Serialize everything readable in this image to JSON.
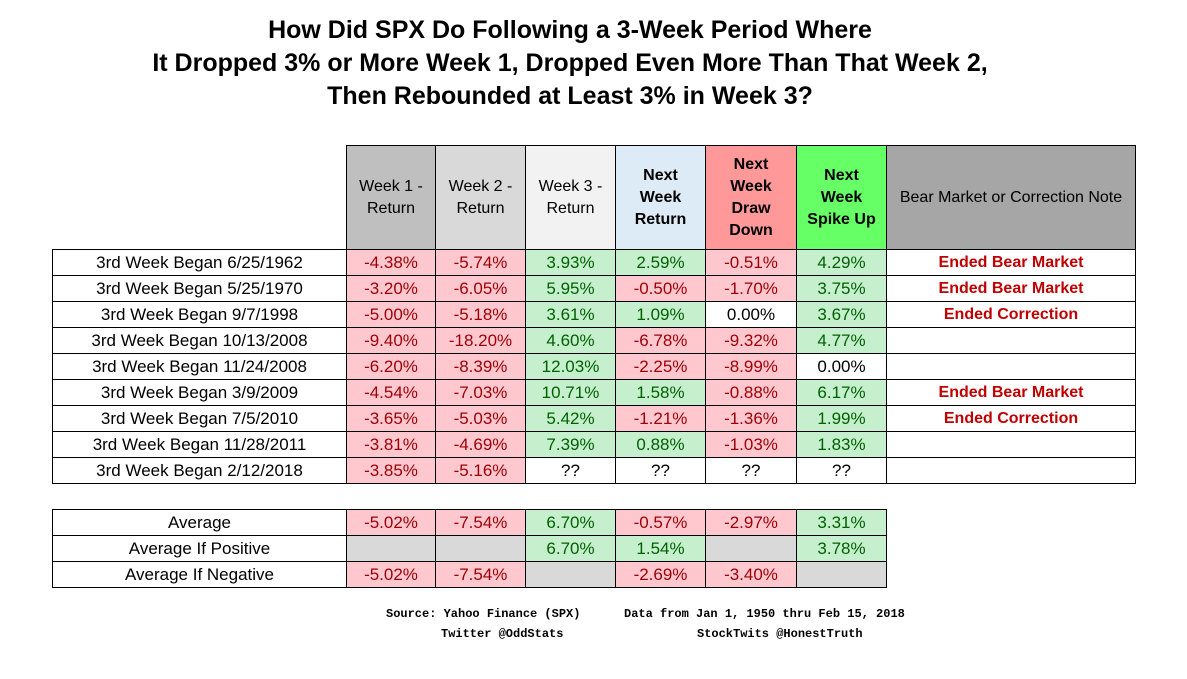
{
  "title": [
    "How Did SPX Do Following a 3-Week Period Where",
    "It Dropped 3% or More Week 1, Dropped Even More Than That Week 2,",
    "Then Rebounded at Least 3% in Week 3?"
  ],
  "header_colors": [
    "#bfbfbf",
    "#d9d9d9",
    "#f2f2f2",
    "#ddebf7",
    "#ff9999",
    "#66ff66",
    "#a6a6a6"
  ],
  "headers": [
    {
      "lines": [
        "Week 1 -",
        "Return"
      ],
      "bold": false
    },
    {
      "lines": [
        "Week 2 -",
        "Return"
      ],
      "bold": false
    },
    {
      "lines": [
        "Week 3 -",
        "Return"
      ],
      "bold": false
    },
    {
      "lines": [
        "Next",
        "Week",
        "Return"
      ],
      "bold": true
    },
    {
      "lines": [
        "Next",
        "Week",
        "Draw",
        "Down"
      ],
      "bold": true
    },
    {
      "lines": [
        "Next",
        "Week",
        "Spike Up"
      ],
      "bold": true
    },
    {
      "lines": [
        "Bear Market or Correction Note"
      ],
      "bold": false
    }
  ],
  "rows": [
    {
      "label": "3rd Week Began 6/25/1962",
      "values": [
        "-4.38%",
        "-5.74%",
        "3.93%",
        "2.59%",
        "-0.51%",
        "4.29%"
      ],
      "note": "Ended Bear Market"
    },
    {
      "label": "3rd Week Began 5/25/1970",
      "values": [
        "-3.20%",
        "-6.05%",
        "5.95%",
        "-0.50%",
        "-1.70%",
        "3.75%"
      ],
      "note": "Ended Bear Market"
    },
    {
      "label": "3rd Week Began 9/7/1998",
      "values": [
        "-5.00%",
        "-5.18%",
        "3.61%",
        "1.09%",
        "0.00%",
        "3.67%"
      ],
      "note": "Ended Correction"
    },
    {
      "label": "3rd Week Began 10/13/2008",
      "values": [
        "-9.40%",
        "-18.20%",
        "4.60%",
        "-6.78%",
        "-9.32%",
        "4.77%"
      ],
      "note": ""
    },
    {
      "label": "3rd Week Began 11/24/2008",
      "values": [
        "-6.20%",
        "-8.39%",
        "12.03%",
        "-2.25%",
        "-8.99%",
        "0.00%"
      ],
      "note": ""
    },
    {
      "label": "3rd Week Began 3/9/2009",
      "values": [
        "-4.54%",
        "-7.03%",
        "10.71%",
        "1.58%",
        "-0.88%",
        "6.17%"
      ],
      "note": "Ended Bear Market"
    },
    {
      "label": "3rd Week Began 7/5/2010",
      "values": [
        "-3.65%",
        "-5.03%",
        "5.42%",
        "-1.21%",
        "-1.36%",
        "1.99%"
      ],
      "note": "Ended Correction"
    },
    {
      "label": "3rd Week Began 11/28/2011",
      "values": [
        "-3.81%",
        "-4.69%",
        "7.39%",
        "0.88%",
        "-1.03%",
        "1.83%"
      ],
      "note": ""
    },
    {
      "label": "3rd Week Began 2/12/2018",
      "values": [
        "-3.85%",
        "-5.16%",
        "??",
        "??",
        "??",
        "??"
      ],
      "note": ""
    }
  ],
  "averages": [
    {
      "label": "Average",
      "values": [
        "-5.02%",
        "-7.54%",
        "6.70%",
        "-0.57%",
        "-2.97%",
        "3.31%"
      ]
    },
    {
      "label": "Average If Positive",
      "values": [
        "",
        "",
        "6.70%",
        "1.54%",
        "",
        "3.78%"
      ]
    },
    {
      "label": "Average If Negative",
      "values": [
        "-5.02%",
        "-7.54%",
        "",
        "-2.69%",
        "-3.40%",
        ""
      ]
    }
  ],
  "footer": {
    "source": "Source: Yahoo Finance (SPX)",
    "range": "Data from Jan 1, 1950 thru Feb 15, 2018",
    "twitter": "Twitter @OddStats",
    "stocktwits": "StockTwits @HonestTruth"
  }
}
